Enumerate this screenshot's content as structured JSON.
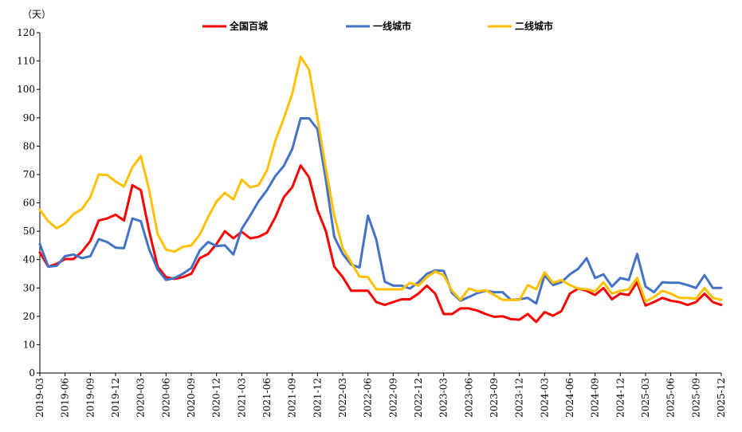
{
  "chart_data": {
    "type": "line",
    "title": "",
    "ylabel": "（天）",
    "xlabel": "",
    "ylim": [
      0,
      120
    ],
    "yticks": [
      "0",
      "10",
      "20",
      "30",
      "40",
      "50",
      "60",
      "70",
      "80",
      "90",
      "100",
      "110",
      "120"
    ],
    "x": [
      "2019-03",
      "2019-04",
      "2019-05",
      "2019-06",
      "2019-07",
      "2019-08",
      "2019-09",
      "2019-10",
      "2019-11",
      "2019-12",
      "2020-01",
      "2020-02",
      "2020-03",
      "2020-04",
      "2020-05",
      "2020-06",
      "2020-07",
      "2020-08",
      "2020-09",
      "2020-10",
      "2020-11",
      "2020-12",
      "2021-01",
      "2021-02",
      "2021-03",
      "2021-04",
      "2021-05",
      "2021-06",
      "2021-07",
      "2021-08",
      "2021-09",
      "2021-10",
      "2021-11",
      "2021-12",
      "2022-01",
      "2022-02",
      "2022-03",
      "2022-04",
      "2022-05",
      "2022-06",
      "2022-07",
      "2022-08",
      "2022-09",
      "2022-10",
      "2022-11",
      "2022-12",
      "2023-01",
      "2023-02",
      "2023-03",
      "2023-04",
      "2023-05",
      "2023-06",
      "2023-07",
      "2023-08",
      "2023-09",
      "2023-10",
      "2023-11",
      "2023-12",
      "2024-01",
      "2024-02",
      "2024-03",
      "2024-04",
      "2024-05",
      "2024-06",
      "2024-07",
      "2024-08",
      "2024-09",
      "2024-10",
      "2024-11",
      "2024-12",
      "2025-01",
      "2025-02",
      "2025-03",
      "2025-04",
      "2025-05",
      "2025-06",
      "2025-07",
      "2025-08",
      "2025-09",
      "2025-10",
      "2025-11",
      "2025-12"
    ],
    "xticks": [
      "2019-03",
      "2019-06",
      "2019-09",
      "2019-12",
      "2020-03",
      "2020-06",
      "2020-09",
      "2020-12",
      "2021-03",
      "2021-06",
      "2021-09",
      "2021-12",
      "2022-03",
      "2022-06",
      "2022-09",
      "2022-12",
      "2023-03",
      "2023-06",
      "2023-09",
      "2023-12",
      "2024-03",
      "2024-06",
      "2024-09",
      "2024-12",
      "2025-03",
      "2025-06",
      "2025-09",
      "2025-12"
    ],
    "legend_position": "top",
    "series": [
      {
        "name": "全国百城",
        "color": "#ff0000",
        "values": [
          42.5,
          37.5,
          38.5,
          40.2,
          40.2,
          42.8,
          46.5,
          53.8,
          54.5,
          55.8,
          53.8,
          66.2,
          64.5,
          50.0,
          37.5,
          33.8,
          33.2,
          33.8,
          35.0,
          40.5,
          42.0,
          45.5,
          50.0,
          47.5,
          49.8,
          47.5,
          48.0,
          49.5,
          55.0,
          62.0,
          65.5,
          73.2,
          69.0,
          57.5,
          50.0,
          37.5,
          33.8,
          29.0,
          29.0,
          29.0,
          25.0,
          24.0,
          25.0,
          26.0,
          26.0,
          28.0,
          30.8,
          28.0,
          20.8,
          20.8,
          22.8,
          22.8,
          22.0,
          20.8,
          19.8,
          20.0,
          19.0,
          18.8,
          20.8,
          18.0,
          21.5,
          20.2,
          21.8,
          28.0,
          29.8,
          29.0,
          27.5,
          30.0,
          26.0,
          28.0,
          27.5,
          32.0,
          23.8,
          25.0,
          26.5,
          25.5,
          25.0,
          24.0,
          25.0,
          28.0,
          25.0,
          24.0
        ]
      },
      {
        "name": "一线城市",
        "color": "#4472c4",
        "values": [
          45.5,
          37.5,
          37.8,
          41.2,
          41.8,
          40.5,
          41.2,
          47.2,
          46.2,
          44.2,
          44.0,
          54.5,
          53.5,
          43.5,
          36.5,
          32.8,
          33.5,
          35.0,
          37.0,
          43.2,
          46.2,
          44.8,
          45.0,
          41.8,
          50.8,
          55.5,
          60.5,
          64.5,
          69.5,
          73.0,
          79.0,
          89.8,
          89.8,
          86.0,
          68.0,
          48.0,
          42.0,
          38.2,
          37.2,
          55.5,
          47.0,
          32.2,
          30.8,
          30.8,
          29.8,
          32.0,
          35.0,
          36.2,
          36.0,
          28.2,
          25.5,
          26.8,
          28.2,
          29.0,
          28.5,
          28.5,
          25.8,
          26.0,
          26.5,
          24.5,
          34.5,
          31.0,
          32.0,
          34.8,
          36.8,
          40.5,
          33.5,
          34.8,
          30.5,
          33.5,
          32.8,
          42.0,
          30.5,
          28.5,
          32.0,
          31.8,
          31.8,
          31.0,
          30.0,
          34.5,
          30.0,
          30.0
        ]
      },
      {
        "name": "二线城市",
        "color": "#ffc000",
        "values": [
          57.5,
          53.5,
          51.0,
          52.8,
          56.0,
          57.8,
          62.0,
          70.0,
          69.8,
          67.5,
          65.8,
          72.5,
          76.5,
          64.5,
          49.0,
          43.5,
          42.8,
          44.5,
          45.0,
          48.8,
          55.0,
          60.5,
          63.5,
          61.2,
          68.2,
          65.5,
          66.2,
          71.5,
          82.0,
          89.8,
          98.5,
          111.5,
          107.0,
          90.0,
          72.0,
          55.5,
          44.0,
          39.0,
          34.0,
          33.8,
          29.5,
          29.5,
          29.5,
          29.5,
          31.8,
          30.8,
          33.8,
          35.8,
          34.5,
          29.0,
          25.8,
          29.8,
          28.8,
          29.2,
          27.5,
          25.8,
          25.8,
          25.8,
          31.0,
          29.5,
          35.5,
          31.8,
          32.8,
          31.0,
          29.8,
          29.5,
          28.8,
          32.0,
          28.0,
          29.0,
          29.5,
          33.5,
          25.2,
          26.8,
          29.0,
          28.0,
          26.5,
          26.5,
          26.2,
          30.0,
          26.5,
          25.8
        ]
      }
    ]
  }
}
